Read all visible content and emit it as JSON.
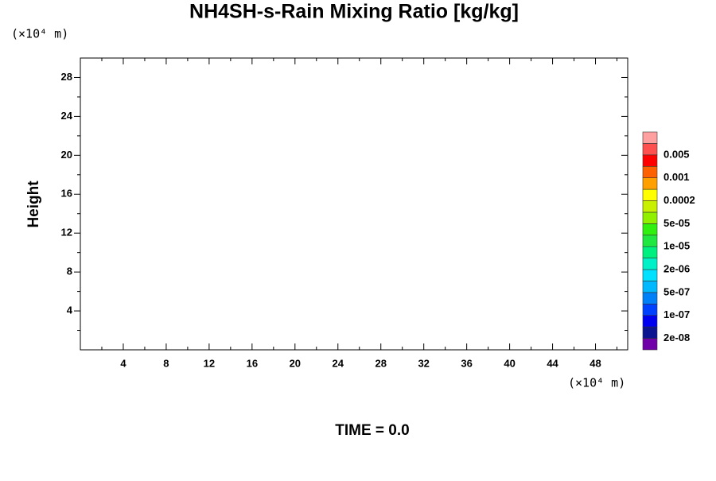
{
  "chart_data": {
    "type": "contour",
    "title": "NH4SH-s-Rain Mixing Ratio [kg/kg]",
    "ylabel": "Height",
    "y_unit": "(×10⁴ m)",
    "x_unit": "(×10⁴ m)",
    "annotation": "TIME = 0.0",
    "xlim": [
      0,
      51
    ],
    "ylim": [
      0,
      30
    ],
    "xticks": [
      4,
      8,
      12,
      16,
      20,
      24,
      28,
      32,
      36,
      40,
      44,
      48
    ],
    "yticks": [
      4,
      8,
      12,
      16,
      20,
      24,
      28
    ],
    "x_minor_ticks": [
      2,
      6,
      10,
      14,
      18,
      22,
      26,
      30,
      34,
      38,
      42,
      46,
      50
    ],
    "y_minor_ticks": [
      2,
      6,
      10,
      14,
      18,
      22,
      26
    ],
    "colorbar": {
      "colors": [
        "#7000a8",
        "#0c1490",
        "#0000f0",
        "#0040ff",
        "#0080f8",
        "#00b8ff",
        "#00e0ff",
        "#00f0c8",
        "#00f080",
        "#20e840",
        "#30f010",
        "#90f000",
        "#c8f000",
        "#ffff00",
        "#ffa000",
        "#ff6000",
        "#ff0000",
        "#ff5050",
        "#ffa0a0"
      ],
      "levels": [
        {
          "value": 2e-08,
          "label": "2e-08"
        },
        {
          "value": 1e-07,
          "label": "1e-07"
        },
        {
          "value": 5e-07,
          "label": "5e-07"
        },
        {
          "value": 2e-06,
          "label": "2e-06"
        },
        {
          "value": 1e-05,
          "label": "1e-05"
        },
        {
          "value": 5e-05,
          "label": "5e-05"
        },
        0.0002,
        0.001,
        0.005
      ]
    }
  }
}
